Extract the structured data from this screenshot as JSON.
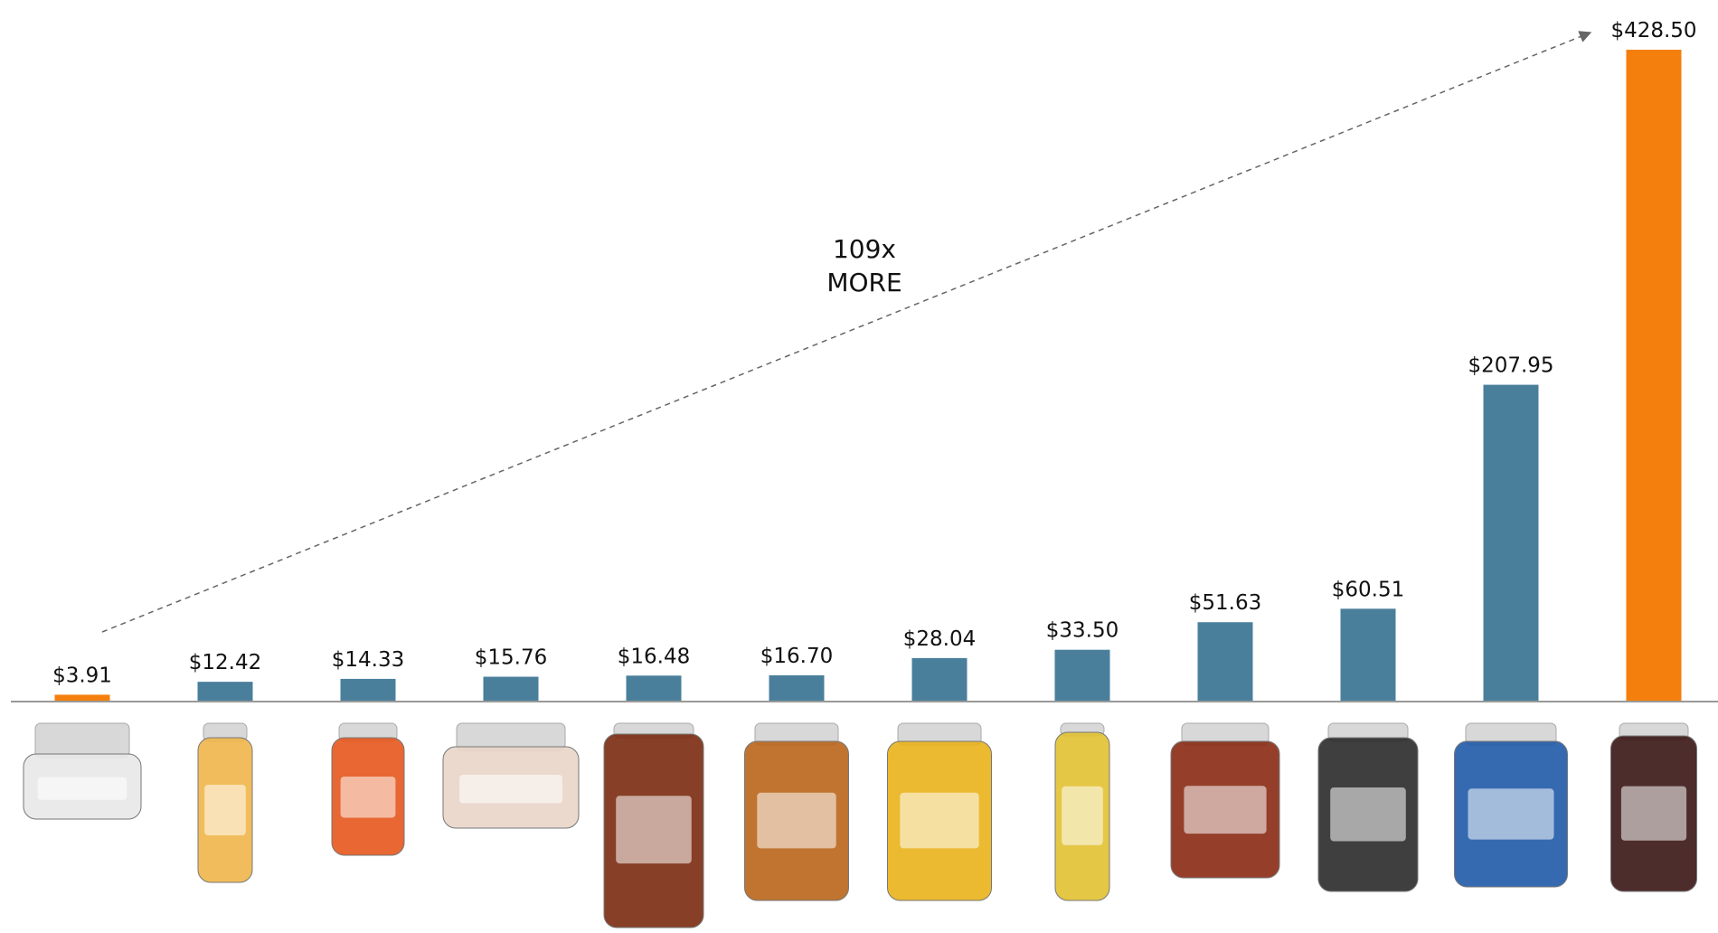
{
  "chart_data": {
    "type": "bar",
    "values": [
      3.91,
      12.42,
      14.33,
      15.76,
      16.48,
      16.7,
      28.04,
      33.5,
      51.63,
      60.51,
      207.95,
      428.5
    ],
    "value_labels": [
      "$3.91",
      "$12.42",
      "$14.33",
      "$15.76",
      "$16.48",
      "$16.70",
      "$28.04",
      "$33.50",
      "$51.63",
      "$60.51",
      "$207.95",
      "$428.50"
    ],
    "colors": [
      "#f57f0d",
      "#4a7f9c",
      "#4a7f9c",
      "#4a7f9c",
      "#4a7f9c",
      "#4a7f9c",
      "#4a7f9c",
      "#4a7f9c",
      "#4a7f9c",
      "#4a7f9c",
      "#4a7f9c",
      "#f57f0d"
    ],
    "annotation": [
      "109x",
      "MORE"
    ]
  }
}
